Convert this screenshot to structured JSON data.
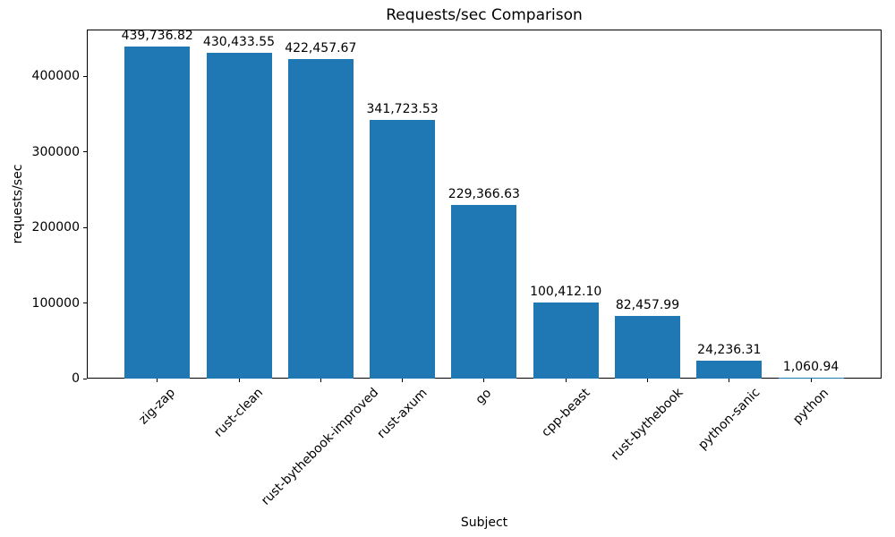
{
  "chart_data": {
    "type": "bar",
    "title": "Requests/sec Comparison",
    "xlabel": "Subject",
    "ylabel": "requests/sec",
    "categories": [
      "zig-zap",
      "rust-clean",
      "rust-bythebook-improved",
      "rust-axum",
      "go",
      "cpp-beast",
      "rust-bythebook",
      "python-sanic",
      "python"
    ],
    "values": [
      439736.82,
      430433.55,
      422457.67,
      341723.53,
      229366.63,
      100412.1,
      82457.99,
      24236.31,
      1060.94
    ],
    "value_labels": [
      "439,736.82",
      "430,433.55",
      "422,457.67",
      "341,723.53",
      "229,366.63",
      "100,412.10",
      "82,457.99",
      "24,236.31",
      "1,060.94"
    ],
    "bar_color": "#1f77b4",
    "ylim": [
      0,
      461723
    ],
    "yticks": [
      0,
      100000,
      200000,
      300000,
      400000
    ],
    "ytick_labels": [
      "0",
      "100000",
      "200000",
      "300000",
      "400000"
    ],
    "grid": false,
    "legend_position": "none",
    "x_tick_rotation_deg": 45
  }
}
